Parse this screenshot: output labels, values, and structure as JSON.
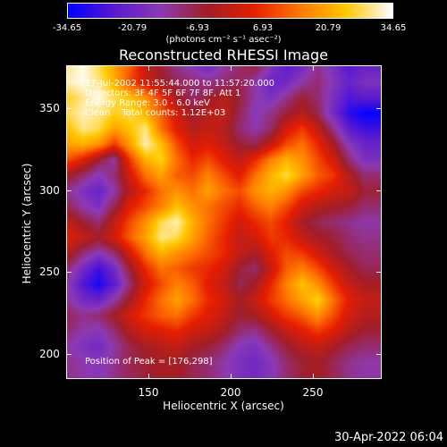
{
  "colorbar": {
    "tick_labels": [
      "-34.65",
      "-20.79",
      "-6.93",
      "6.93",
      "20.79",
      "34.65"
    ],
    "units_label": "(photons cm⁻² s⁻¹ asec⁻²)",
    "range": [
      -34.65,
      34.65
    ]
  },
  "title": "Reconstructed RHESSI Image",
  "info": {
    "time_range": "17-Jul-2002 11:55:44.000 to 11:57:20.000",
    "detectors": "Detectors: 3F 4F 5F 6F 7F 8F, Att 1",
    "energy": "Energy Range: 3.0 - 6.0 keV",
    "method": "Clean    Total counts: 1.12E+03",
    "peak": "Position of Peak = [176,298]"
  },
  "axes": {
    "xlabel": "Heliocentric X (arcsec)",
    "ylabel": "Heliocentric Y (arcsec)",
    "xticks": [
      "150",
      "200",
      "250"
    ],
    "yticks": [
      "350",
      "300",
      "250",
      "200"
    ]
  },
  "datestamp": "30-Apr-2022 06:04",
  "chart_data": {
    "type": "heatmap",
    "title": "Reconstructed RHESSI Image",
    "xlabel": "Heliocentric X (arcsec)",
    "ylabel": "Heliocentric Y (arcsec)",
    "xlim": [
      100,
      290
    ],
    "ylim": [
      185,
      375
    ],
    "zlim": [
      -34.65,
      34.65
    ],
    "peak": [
      176,
      298
    ],
    "colormap": [
      "#0000ff",
      "#5a1ad0",
      "#8c3ab4",
      "#a01e28",
      "#e61e00",
      "#ff7800",
      "#ffc800",
      "#ffffff"
    ],
    "grid_origin": [
      100,
      375
    ],
    "grid_step": 9.5,
    "grid": [
      [
        30,
        34,
        28,
        20,
        12,
        0,
        -6,
        -12,
        -16,
        -20,
        -14,
        -10,
        -6,
        -16,
        -24,
        -20,
        -12,
        -18,
        -26,
        -22
      ],
      [
        32,
        34,
        30,
        22,
        10,
        2,
        -4,
        -8,
        -10,
        -12,
        -10,
        -8,
        -14,
        -22,
        -20,
        -14,
        -10,
        -16,
        -22,
        -18
      ],
      [
        26,
        30,
        34,
        28,
        24,
        18,
        8,
        -4,
        -10,
        -6,
        -2,
        -6,
        -14,
        -18,
        -12,
        -6,
        -10,
        -18,
        -26,
        -24
      ],
      [
        28,
        32,
        30,
        26,
        28,
        22,
        12,
        2,
        -4,
        -2,
        0,
        -8,
        -16,
        -12,
        -6,
        -2,
        -8,
        -20,
        -30,
        -34
      ],
      [
        24,
        30,
        28,
        20,
        24,
        30,
        14,
        4,
        -2,
        0,
        -2,
        -10,
        -14,
        -10,
        2,
        8,
        0,
        -12,
        -24,
        -28
      ],
      [
        20,
        22,
        18,
        8,
        20,
        32,
        24,
        10,
        2,
        4,
        0,
        -6,
        -8,
        0,
        10,
        14,
        6,
        -4,
        -16,
        -22
      ],
      [
        10,
        4,
        -6,
        -14,
        8,
        22,
        26,
        14,
        6,
        10,
        4,
        0,
        6,
        16,
        22,
        18,
        10,
        2,
        -10,
        -18
      ],
      [
        -4,
        -10,
        -16,
        -10,
        2,
        14,
        20,
        12,
        10,
        16,
        10,
        4,
        14,
        22,
        28,
        20,
        12,
        8,
        -2,
        -10
      ],
      [
        -12,
        -18,
        -22,
        -14,
        -2,
        6,
        14,
        18,
        14,
        20,
        14,
        10,
        18,
        22,
        18,
        10,
        6,
        2,
        0,
        -6
      ],
      [
        -8,
        -14,
        -18,
        -8,
        4,
        10,
        16,
        24,
        18,
        14,
        10,
        6,
        12,
        16,
        10,
        2,
        -2,
        -4,
        -6,
        -10
      ],
      [
        0,
        -6,
        -10,
        0,
        10,
        18,
        28,
        32,
        22,
        14,
        8,
        2,
        6,
        10,
        4,
        -4,
        -8,
        -10,
        -12,
        -14
      ],
      [
        4,
        0,
        -4,
        2,
        12,
        20,
        30,
        28,
        20,
        12,
        6,
        0,
        2,
        8,
        6,
        0,
        -4,
        -6,
        -10,
        -12
      ],
      [
        -2,
        -10,
        -16,
        -10,
        2,
        14,
        22,
        18,
        14,
        10,
        6,
        0,
        -4,
        4,
        10,
        8,
        2,
        -4,
        -8,
        -10
      ],
      [
        -10,
        -20,
        -28,
        -20,
        -6,
        6,
        14,
        12,
        8,
        6,
        2,
        -6,
        -10,
        0,
        12,
        16,
        10,
        2,
        -4,
        -8
      ],
      [
        -14,
        -26,
        -32,
        -24,
        -10,
        2,
        10,
        16,
        12,
        4,
        0,
        -8,
        -4,
        6,
        16,
        24,
        18,
        8,
        0,
        -4
      ],
      [
        -12,
        -20,
        -22,
        -14,
        -4,
        6,
        14,
        20,
        14,
        6,
        2,
        -4,
        0,
        8,
        14,
        20,
        26,
        14,
        4,
        0
      ],
      [
        -8,
        -12,
        -10,
        -4,
        2,
        8,
        12,
        14,
        8,
        4,
        0,
        -6,
        -4,
        2,
        8,
        12,
        18,
        10,
        2,
        -2
      ],
      [
        -10,
        -14,
        -16,
        -10,
        -2,
        2,
        4,
        6,
        2,
        0,
        -4,
        -10,
        -12,
        -6,
        0,
        4,
        8,
        4,
        -2,
        -6
      ],
      [
        -14,
        -18,
        -20,
        -14,
        -8,
        -4,
        -2,
        0,
        -4,
        -6,
        -10,
        -16,
        -18,
        -12,
        -6,
        -2,
        0,
        -4,
        -8,
        -10
      ],
      [
        -12,
        -14,
        -16,
        -12,
        -8,
        -6,
        -4,
        -4,
        -8,
        -10,
        -14,
        -18,
        -20,
        -16,
        -10,
        -6,
        -4,
        -8,
        -12,
        -14
      ]
    ]
  }
}
